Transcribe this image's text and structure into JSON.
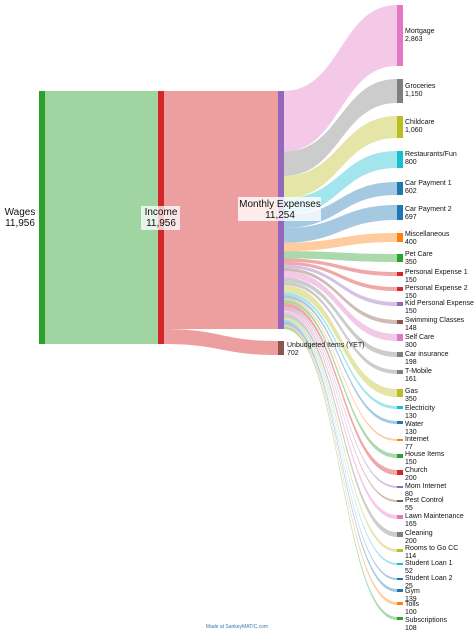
{
  "diagram": {
    "type": "sankey",
    "nodes": {
      "wages": {
        "name": "Wages",
        "value": "11,956",
        "color": "#2ca02c"
      },
      "income": {
        "name": "Income",
        "value": "11,956",
        "color": "#d62728"
      },
      "monthly": {
        "name": "Monthly Expenses",
        "value": "11,254",
        "color": "#9467bd"
      },
      "unbudgeted": {
        "name": "Unbudgeted Items (YET)",
        "value": "702",
        "color": "#8c564b"
      }
    },
    "expenses": [
      {
        "name": "Mortgage",
        "value": "2,863",
        "amount": 2863,
        "color": "#e377c2"
      },
      {
        "name": "Groceries",
        "value": "1,150",
        "amount": 1150,
        "color": "#7f7f7f"
      },
      {
        "name": "Childcare",
        "value": "1,060",
        "amount": 1060,
        "color": "#bcbd22"
      },
      {
        "name": "Restaurants/Fun",
        "value": "800",
        "amount": 800,
        "color": "#17becf"
      },
      {
        "name": "Car Payment 1",
        "value": "602",
        "amount": 602,
        "color": "#1f77b4"
      },
      {
        "name": "Car Payment 2",
        "value": "697",
        "amount": 697,
        "color": "#1f77b4"
      },
      {
        "name": "Miscellaneous",
        "value": "400",
        "amount": 400,
        "color": "#ff7f0e"
      },
      {
        "name": "Pet Care",
        "value": "350",
        "amount": 350,
        "color": "#2ca02c"
      },
      {
        "name": "Personal Expense 1",
        "value": "150",
        "amount": 150,
        "color": "#d62728"
      },
      {
        "name": "Personal Expense 2",
        "value": "150",
        "amount": 150,
        "color": "#d62728"
      },
      {
        "name": "Kid Personal Expense",
        "value": "150",
        "amount": 150,
        "color": "#9467bd"
      },
      {
        "name": "Swimming Classes",
        "value": "148",
        "amount": 148,
        "color": "#8c564b"
      },
      {
        "name": "Self Care",
        "value": "300",
        "amount": 300,
        "color": "#e377c2"
      },
      {
        "name": "Car insurance",
        "value": "198",
        "amount": 198,
        "color": "#7f7f7f"
      },
      {
        "name": "T-Mobile",
        "value": "161",
        "amount": 161,
        "color": "#7f7f7f"
      },
      {
        "name": "Gas",
        "value": "350",
        "amount": 350,
        "color": "#bcbd22"
      },
      {
        "name": "Electricity",
        "value": "130",
        "amount": 130,
        "color": "#17becf"
      },
      {
        "name": "Water",
        "value": "130",
        "amount": 130,
        "color": "#1f77b4"
      },
      {
        "name": "Internet",
        "value": "77",
        "amount": 77,
        "color": "#ff7f0e"
      },
      {
        "name": "House Items",
        "value": "150",
        "amount": 150,
        "color": "#2ca02c"
      },
      {
        "name": "Church",
        "value": "200",
        "amount": 200,
        "color": "#d62728"
      },
      {
        "name": "Mom Internet",
        "value": "80",
        "amount": 80,
        "color": "#9467bd"
      },
      {
        "name": "Pest Control",
        "value": "55",
        "amount": 55,
        "color": "#8c564b"
      },
      {
        "name": "Lawn Maintenance",
        "value": "165",
        "amount": 165,
        "color": "#e377c2"
      },
      {
        "name": "Cleaning",
        "value": "200",
        "amount": 200,
        "color": "#7f7f7f"
      },
      {
        "name": "Rooms to Go CC",
        "value": "114",
        "amount": 114,
        "color": "#bcbd22"
      },
      {
        "name": "Student Loan 1",
        "value": "52",
        "amount": 52,
        "color": "#17becf"
      },
      {
        "name": "Student Loan 2",
        "value": "25",
        "amount": 25,
        "color": "#1f77b4"
      },
      {
        "name": "Gym",
        "value": "139",
        "amount": 139,
        "color": "#1f77b4"
      },
      {
        "name": "Tolls",
        "value": "100",
        "amount": 100,
        "color": "#ff7f0e"
      },
      {
        "name": "Subscriptions",
        "value": "108",
        "amount": 108,
        "color": "#2ca02c"
      }
    ]
  },
  "footer": {
    "text": "Made at SankeyMATIC.com"
  }
}
